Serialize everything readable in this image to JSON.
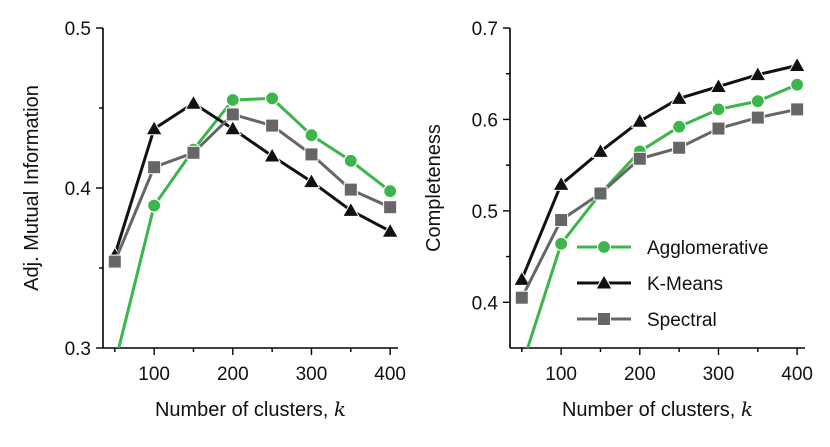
{
  "chart_data": [
    {
      "type": "line",
      "xlabel": "Number of clusters, ",
      "xlabel_var": "k",
      "ylabel": "Adj. Mutual Information",
      "xlim": [
        35,
        410
      ],
      "ylim": [
        0.3,
        0.5
      ],
      "xticks": [
        "100",
        "200",
        "300",
        "400"
      ],
      "yticks": [
        "0.3",
        "0.4",
        "0.5"
      ],
      "x": [
        50,
        100,
        150,
        200,
        250,
        300,
        350,
        400
      ],
      "series": [
        {
          "name": "Agglomerative",
          "color": "#3cb54a",
          "marker": "circle",
          "values": [
            0.29,
            0.389,
            0.424,
            0.455,
            0.456,
            0.433,
            0.417,
            0.398
          ]
        },
        {
          "name": "K-Means",
          "color": "#111111",
          "marker": "triangle",
          "values": [
            0.358,
            0.437,
            0.453,
            0.437,
            0.42,
            0.404,
            0.386,
            0.373
          ]
        },
        {
          "name": "Spectral",
          "color": "#666666",
          "marker": "square",
          "values": [
            0.354,
            0.413,
            0.422,
            0.446,
            0.439,
            0.421,
            0.399,
            0.388
          ]
        }
      ],
      "grid": false
    },
    {
      "type": "line",
      "xlabel": "Number of clusters, ",
      "xlabel_var": "k",
      "ylabel": "Completeness",
      "xlim": [
        35,
        410
      ],
      "ylim": [
        0.35,
        0.7
      ],
      "xticks": [
        "100",
        "200",
        "300",
        "400"
      ],
      "yticks": [
        "0.4",
        "0.5",
        "0.6",
        "0.7"
      ],
      "x": [
        50,
        100,
        150,
        200,
        250,
        300,
        350,
        400
      ],
      "series": [
        {
          "name": "Agglomerative",
          "color": "#3cb54a",
          "marker": "circle",
          "values": [
            0.33,
            0.464,
            0.519,
            0.565,
            0.592,
            0.611,
            0.62,
            0.638
          ]
        },
        {
          "name": "K-Means",
          "color": "#111111",
          "marker": "triangle",
          "values": [
            0.425,
            0.529,
            0.565,
            0.598,
            0.623,
            0.636,
            0.649,
            0.659
          ]
        },
        {
          "name": "Spectral",
          "color": "#666666",
          "marker": "square",
          "values": [
            0.405,
            0.49,
            0.519,
            0.557,
            0.569,
            0.59,
            0.602,
            0.611
          ]
        }
      ],
      "grid": false,
      "legend": "bottom-right"
    }
  ]
}
